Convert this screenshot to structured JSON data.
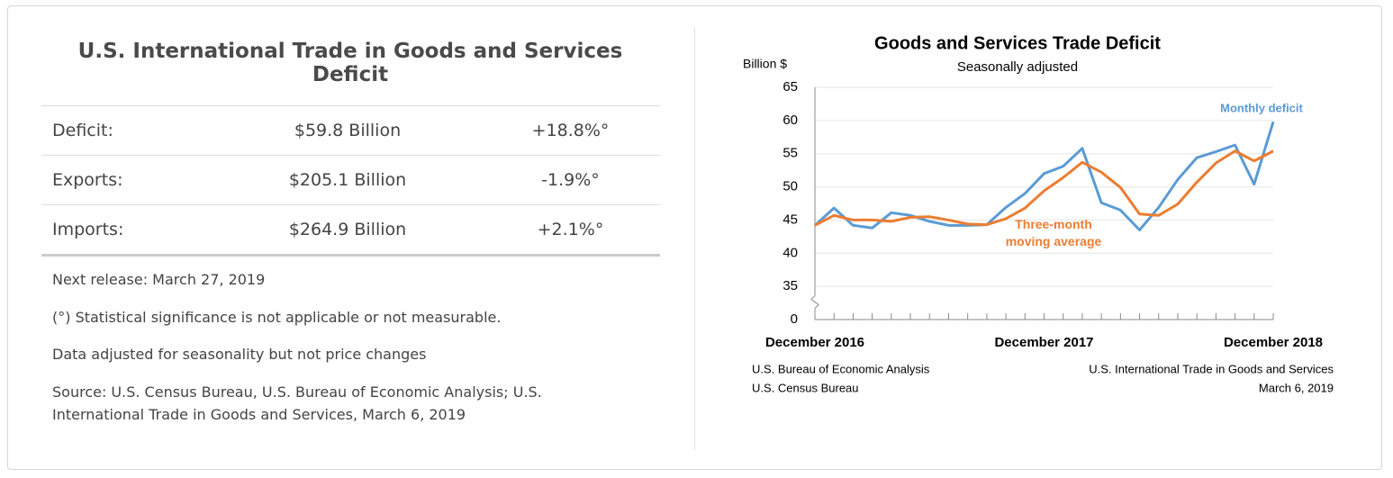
{
  "panel": {
    "title": "U.S. International Trade in Goods and Services Deficit",
    "table": {
      "rows": [
        [
          "Deficit:",
          "$59.8 Billion",
          "+18.8%°"
        ],
        [
          "Exports:",
          "$205.1 Billion",
          "-1.9%°"
        ],
        [
          "Imports:",
          "$264.9 Billion",
          "+2.1%°"
        ]
      ]
    },
    "notes": [
      "Next release: March 27, 2019",
      "(°) Statistical significance is not applicable or not measurable.",
      "Data adjusted for seasonality but not price changes",
      "Source: U.S. Census Bureau, U.S. Bureau of Economic Analysis; U.S. International Trade in Goods and Services, March 6, 2019"
    ]
  },
  "chart_data": {
    "type": "line",
    "title": "Goods and Services Trade Deficit",
    "subtitle": "Seasonally adjusted",
    "y_label": "Billion $",
    "categories": [
      "December 2016",
      null,
      null,
      null,
      null,
      null,
      null,
      null,
      null,
      null,
      null,
      null,
      "December 2017",
      null,
      null,
      null,
      null,
      null,
      null,
      null,
      null,
      null,
      null,
      null,
      "December 2018"
    ],
    "series": [
      {
        "name": "Monthly deficit",
        "color": "#5b9bd5",
        "values": [
          44.2,
          46.8,
          44.2,
          43.8,
          46.1,
          45.7,
          44.8,
          44.2,
          44.2,
          44.3,
          46.9,
          49.0,
          52.0,
          53.1,
          55.8,
          47.6,
          46.5,
          43.5,
          46.9,
          51.1,
          54.4,
          55.3,
          56.3,
          50.4,
          59.8
        ]
      },
      {
        "name": "Three-month moving average",
        "color": "#ed7d31",
        "values": [
          44.2,
          45.7,
          45.0,
          45.0,
          44.8,
          45.4,
          45.5,
          45.0,
          44.4,
          44.3,
          45.2,
          46.8,
          49.4,
          51.4,
          53.7,
          52.2,
          49.9,
          45.9,
          45.7,
          47.4,
          50.7,
          53.6,
          55.4,
          53.9,
          55.4
        ]
      }
    ],
    "ylim": [
      0,
      65
    ],
    "yticks": [
      0,
      35,
      40,
      45,
      50,
      55,
      60,
      65
    ],
    "axis_break": [
      0,
      35
    ],
    "grid": true,
    "footnotes_left": [
      "U.S. Bureau of Economic Analysis",
      "U.S. Census Bureau"
    ],
    "footnotes_right": [
      "U.S. International Trade in Goods and Services",
      "March 6, 2019"
    ]
  }
}
